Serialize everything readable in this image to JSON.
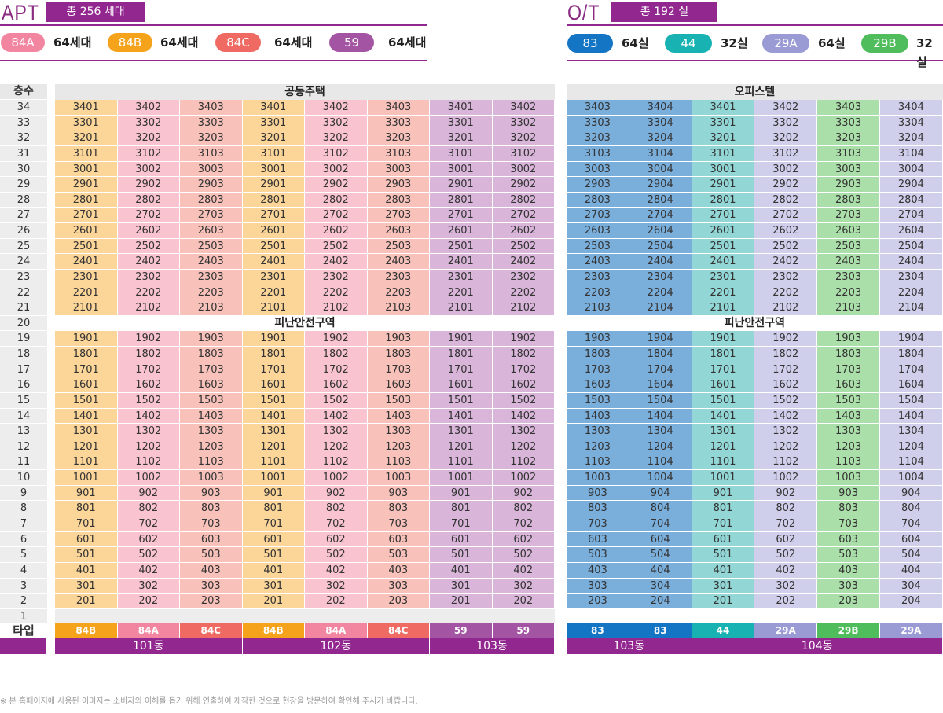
{
  "apt": {
    "title": "APT",
    "total": "총 256 세대",
    "legend": [
      {
        "label": "84A",
        "count": "64세대",
        "color": "#f286a0"
      },
      {
        "label": "84B",
        "count": "64세대",
        "color": "#f5a31a"
      },
      {
        "label": "84C",
        "count": "64세대",
        "color": "#ee6a62"
      },
      {
        "label": "59",
        "count": "64세대",
        "color": "#a355a3"
      }
    ]
  },
  "ot": {
    "title": "O/T",
    "total": "총 192 실",
    "legend": [
      {
        "label": "83",
        "count": "64실",
        "color": "#1475c5"
      },
      {
        "label": "44",
        "count": "32실",
        "color": "#18b2b2"
      },
      {
        "label": "29A",
        "count": "64실",
        "color": "#9a9ad4"
      },
      {
        "label": "29B",
        "count": "32실",
        "color": "#4fbd5b"
      }
    ]
  },
  "floor_header": "층수",
  "type_header": "타입",
  "apt_section_title": "공동주택",
  "ot_section_title": "오피스텔",
  "refuge_label": "피난안전구역",
  "floors": [
    "34",
    "33",
    "32",
    "31",
    "30",
    "29",
    "28",
    "27",
    "26",
    "25",
    "24",
    "23",
    "22",
    "21",
    "20",
    "19",
    "18",
    "17",
    "16",
    "15",
    "14",
    "13",
    "12",
    "11",
    "10",
    "9",
    "8",
    "7",
    "6",
    "5",
    "4",
    "3",
    "2",
    "1"
  ],
  "apt_columns": [
    {
      "type": "84B",
      "suffix": "01",
      "cell_color": "#fcd598",
      "type_color": "#f5a31a"
    },
    {
      "type": "84A",
      "suffix": "02",
      "cell_color": "#f9c3cf",
      "type_color": "#f286a0"
    },
    {
      "type": "84C",
      "suffix": "03",
      "cell_color": "#f8c1ba",
      "type_color": "#ee6a62"
    },
    {
      "type": "84B",
      "suffix": "01",
      "cell_color": "#fcd598",
      "type_color": "#f5a31a"
    },
    {
      "type": "84A",
      "suffix": "02",
      "cell_color": "#f9c3cf",
      "type_color": "#f286a0"
    },
    {
      "type": "84C",
      "suffix": "03",
      "cell_color": "#f8c1ba",
      "type_color": "#ee6a62"
    },
    {
      "type": "59",
      "suffix": "01",
      "cell_color": "#d9b5d9",
      "type_color": "#a355a3"
    },
    {
      "type": "59",
      "suffix": "02",
      "cell_color": "#d9b5d9",
      "type_color": "#a355a3"
    }
  ],
  "ot_columns": [
    {
      "type": "83",
      "suffix": "03",
      "cell_color": "#7aaedb",
      "type_color": "#1475c5"
    },
    {
      "type": "83",
      "suffix": "04",
      "cell_color": "#7aaedb",
      "type_color": "#1475c5"
    },
    {
      "type": "44",
      "suffix": "01",
      "cell_color": "#92d6d6",
      "type_color": "#18b2b2"
    },
    {
      "type": "29A",
      "suffix": "02",
      "cell_color": "#cfcfec",
      "type_color": "#9a9ad4"
    },
    {
      "type": "29B",
      "suffix": "03",
      "cell_color": "#abdfaa",
      "type_color": "#4fbd5b"
    },
    {
      "type": "29A",
      "suffix": "04",
      "cell_color": "#cfcfec",
      "type_color": "#9a9ad4"
    }
  ],
  "apt_dongs": [
    {
      "label": "101동",
      "span": 3
    },
    {
      "label": "102동",
      "span": 3
    },
    {
      "label": "103동",
      "span": 2
    }
  ],
  "ot_dongs": [
    {
      "label": "103동",
      "span": 2
    },
    {
      "label": "104동",
      "span": 4
    }
  ],
  "footnote": "※ 본 홈페이지에 사용된 이미지는 소비자의 이해를 돕기 위해 연출하여 제작한 것으로 현장을 방문하여 확인해 주시기 바랍니다."
}
